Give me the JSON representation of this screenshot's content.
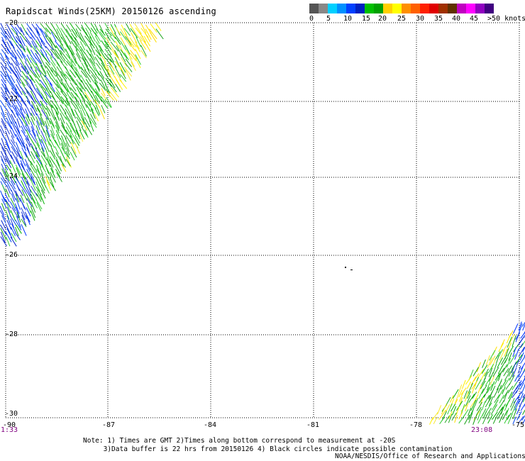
{
  "title": "Rapidscat Winds(25KM) 20150126 ascending",
  "legend": {
    "colors": [
      "#555555",
      "#888888",
      "#00d0ff",
      "#0090ff",
      "#0040ff",
      "#0020c0",
      "#00c000",
      "#00a000",
      "#ffd000",
      "#ffff00",
      "#ff9000",
      "#ff6000",
      "#ff2000",
      "#e00000",
      "#a03000",
      "#603000",
      "#c000c0",
      "#ff00ff",
      "#9000c0",
      "#400080"
    ],
    "labels": [
      "0",
      "5",
      "10",
      "15",
      "20",
      "25",
      "30",
      "35",
      "40",
      "45",
      ">50 knots"
    ]
  },
  "map": {
    "lat_labels": [
      "-20",
      "-22",
      "-24",
      "-26",
      "-28",
      "-30"
    ],
    "lon_labels": [
      "-90",
      "-87",
      "-84",
      "-81",
      "-78",
      "-75"
    ],
    "time_left": "1:33",
    "time_right": "23:08"
  },
  "notes": {
    "line1": "Note: 1) Times are GMT 2)Times along bottom correspond to measurement at -20S",
    "line2": "     3)Data buffer is 22 hrs from 20150126 4) Black circles indicate possible contamination"
  },
  "credit": "NOAA/NESDIS/Office of Research and Applications"
}
